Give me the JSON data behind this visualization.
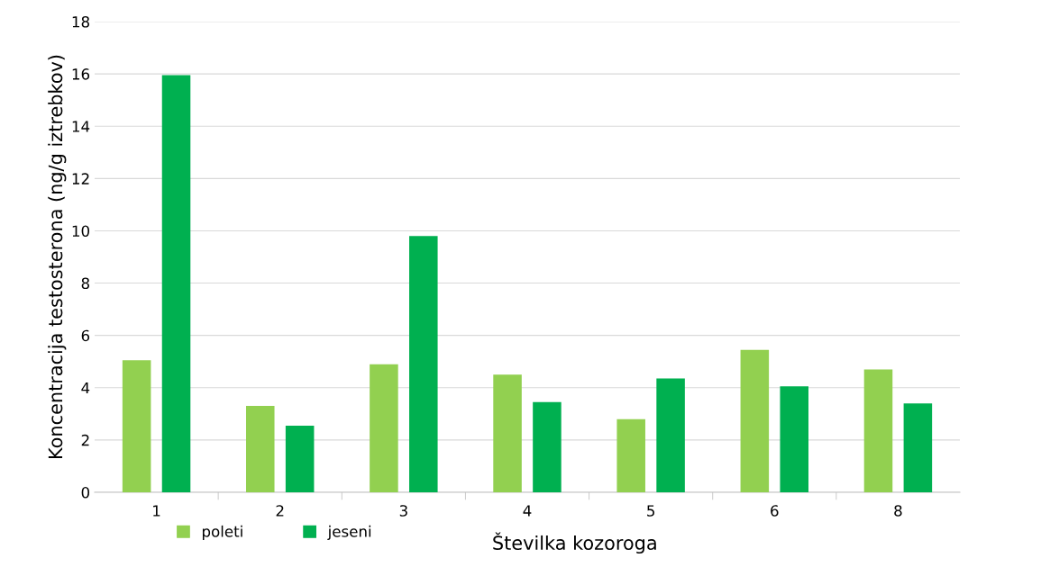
{
  "chart_data": {
    "type": "bar",
    "xlabel": "Številka kozoroga",
    "ylabel": "Koncentracija testosterona (ng/g iztrebkov)",
    "categories": [
      "1",
      "2",
      "3",
      "4",
      "5",
      "6",
      "8"
    ],
    "series": [
      {
        "name": "poleti",
        "color": "#92d050",
        "values": [
          5.05,
          3.3,
          4.9,
          4.5,
          2.8,
          5.45,
          4.7
        ]
      },
      {
        "name": "jeseni",
        "color": "#00b050",
        "values": [
          15.95,
          2.55,
          9.8,
          3.45,
          4.35,
          4.05,
          3.4
        ]
      }
    ],
    "ylim": [
      0,
      18
    ],
    "yticks": [
      0,
      2,
      4,
      6,
      8,
      10,
      12,
      14,
      16,
      18
    ],
    "grid": "y",
    "legend": "bottom"
  }
}
